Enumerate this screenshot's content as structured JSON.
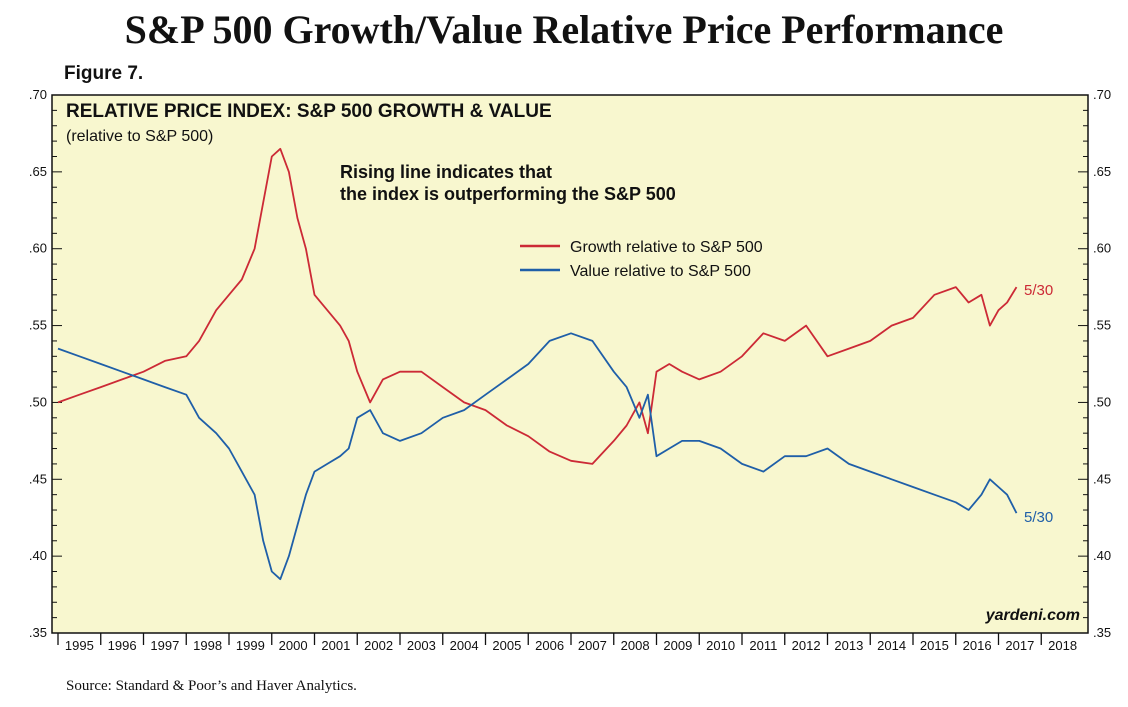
{
  "page": {
    "title": "S&P 500 Growth/Value Relative Price Performance",
    "figure_label": "Figure 7.",
    "source": "Source: Standard & Poor’s and Haver Analytics.",
    "watermark": "yardeni.com"
  },
  "colors": {
    "panel": "#f8f7cf",
    "growth": "#cc2a36",
    "value": "#1f5fa8",
    "frame": "#111111"
  },
  "chart_data": {
    "type": "line",
    "title": "RELATIVE PRICE INDEX: S&P 500 GROWTH & VALUE",
    "subtitle": "(relative to S&P 500)",
    "annotation": "Rising line indicates that the index is outperforming the S&P 500",
    "annotation_lines": [
      "Rising line indicates that",
      "the index is outperforming the S&P 500"
    ],
    "ylim": [
      0.35,
      0.7
    ],
    "xlim": [
      1995,
      2019
    ],
    "y_ticks": [
      ".35",
      ".40",
      ".45",
      ".50",
      ".55",
      ".60",
      ".65",
      ".70"
    ],
    "y_tick_values": [
      0.35,
      0.4,
      0.45,
      0.5,
      0.55,
      0.6,
      0.65,
      0.7
    ],
    "x_tick_labels": [
      "1995",
      "1996",
      "1997",
      "1998",
      "1999",
      "2000",
      "2001",
      "2002",
      "2003",
      "2004",
      "2005",
      "2006",
      "2007",
      "2008",
      "2009",
      "2010",
      "2011",
      "2012",
      "2013",
      "2014",
      "2015",
      "2016",
      "2017",
      "2018"
    ],
    "legend_position": "top-center",
    "series": [
      {
        "name": "Growth relative to S&P 500",
        "end_label": "5/30",
        "x": [
          1995.0,
          1995.5,
          1996.0,
          1996.5,
          1997.0,
          1997.5,
          1998.0,
          1998.3,
          1998.7,
          1999.0,
          1999.3,
          1999.6,
          1999.8,
          2000.0,
          2000.2,
          2000.4,
          2000.6,
          2000.8,
          2001.0,
          2001.3,
          2001.6,
          2001.8,
          2002.0,
          2002.3,
          2002.6,
          2003.0,
          2003.5,
          2004.0,
          2004.5,
          2005.0,
          2005.5,
          2006.0,
          2006.5,
          2007.0,
          2007.5,
          2008.0,
          2008.3,
          2008.6,
          2008.8,
          2009.0,
          2009.3,
          2009.6,
          2010.0,
          2010.5,
          2011.0,
          2011.5,
          2012.0,
          2012.5,
          2013.0,
          2013.5,
          2014.0,
          2014.5,
          2015.0,
          2015.5,
          2016.0,
          2016.3,
          2016.6,
          2016.8,
          2017.0,
          2017.2,
          2017.42
        ],
        "values": [
          0.5,
          0.505,
          0.51,
          0.515,
          0.52,
          0.527,
          0.53,
          0.54,
          0.56,
          0.57,
          0.58,
          0.6,
          0.63,
          0.66,
          0.665,
          0.65,
          0.62,
          0.6,
          0.57,
          0.56,
          0.55,
          0.54,
          0.52,
          0.5,
          0.515,
          0.52,
          0.52,
          0.51,
          0.5,
          0.495,
          0.485,
          0.478,
          0.468,
          0.462,
          0.46,
          0.475,
          0.485,
          0.5,
          0.48,
          0.52,
          0.525,
          0.52,
          0.515,
          0.52,
          0.53,
          0.545,
          0.54,
          0.55,
          0.53,
          0.535,
          0.54,
          0.55,
          0.555,
          0.57,
          0.575,
          0.565,
          0.57,
          0.55,
          0.56,
          0.565,
          0.575
        ]
      },
      {
        "name": "Value relative to S&P 500",
        "end_label": "5/30",
        "x": [
          1995.0,
          1995.5,
          1996.0,
          1996.5,
          1997.0,
          1997.5,
          1998.0,
          1998.3,
          1998.7,
          1999.0,
          1999.3,
          1999.6,
          1999.8,
          2000.0,
          2000.2,
          2000.4,
          2000.6,
          2000.8,
          2001.0,
          2001.3,
          2001.6,
          2001.8,
          2002.0,
          2002.3,
          2002.6,
          2003.0,
          2003.5,
          2004.0,
          2004.5,
          2005.0,
          2005.5,
          2006.0,
          2006.5,
          2007.0,
          2007.5,
          2008.0,
          2008.3,
          2008.6,
          2008.8,
          2009.0,
          2009.3,
          2009.6,
          2010.0,
          2010.5,
          2011.0,
          2011.5,
          2012.0,
          2012.5,
          2013.0,
          2013.5,
          2014.0,
          2014.5,
          2015.0,
          2015.5,
          2016.0,
          2016.3,
          2016.6,
          2016.8,
          2017.0,
          2017.2,
          2017.42
        ],
        "values": [
          0.535,
          0.53,
          0.525,
          0.52,
          0.515,
          0.51,
          0.505,
          0.49,
          0.48,
          0.47,
          0.455,
          0.44,
          0.41,
          0.39,
          0.385,
          0.4,
          0.42,
          0.44,
          0.455,
          0.46,
          0.465,
          0.47,
          0.49,
          0.495,
          0.48,
          0.475,
          0.48,
          0.49,
          0.495,
          0.505,
          0.515,
          0.525,
          0.54,
          0.545,
          0.54,
          0.52,
          0.51,
          0.49,
          0.505,
          0.465,
          0.47,
          0.475,
          0.475,
          0.47,
          0.46,
          0.455,
          0.465,
          0.465,
          0.47,
          0.46,
          0.455,
          0.45,
          0.445,
          0.44,
          0.435,
          0.43,
          0.44,
          0.45,
          0.445,
          0.44,
          0.428
        ]
      }
    ]
  }
}
